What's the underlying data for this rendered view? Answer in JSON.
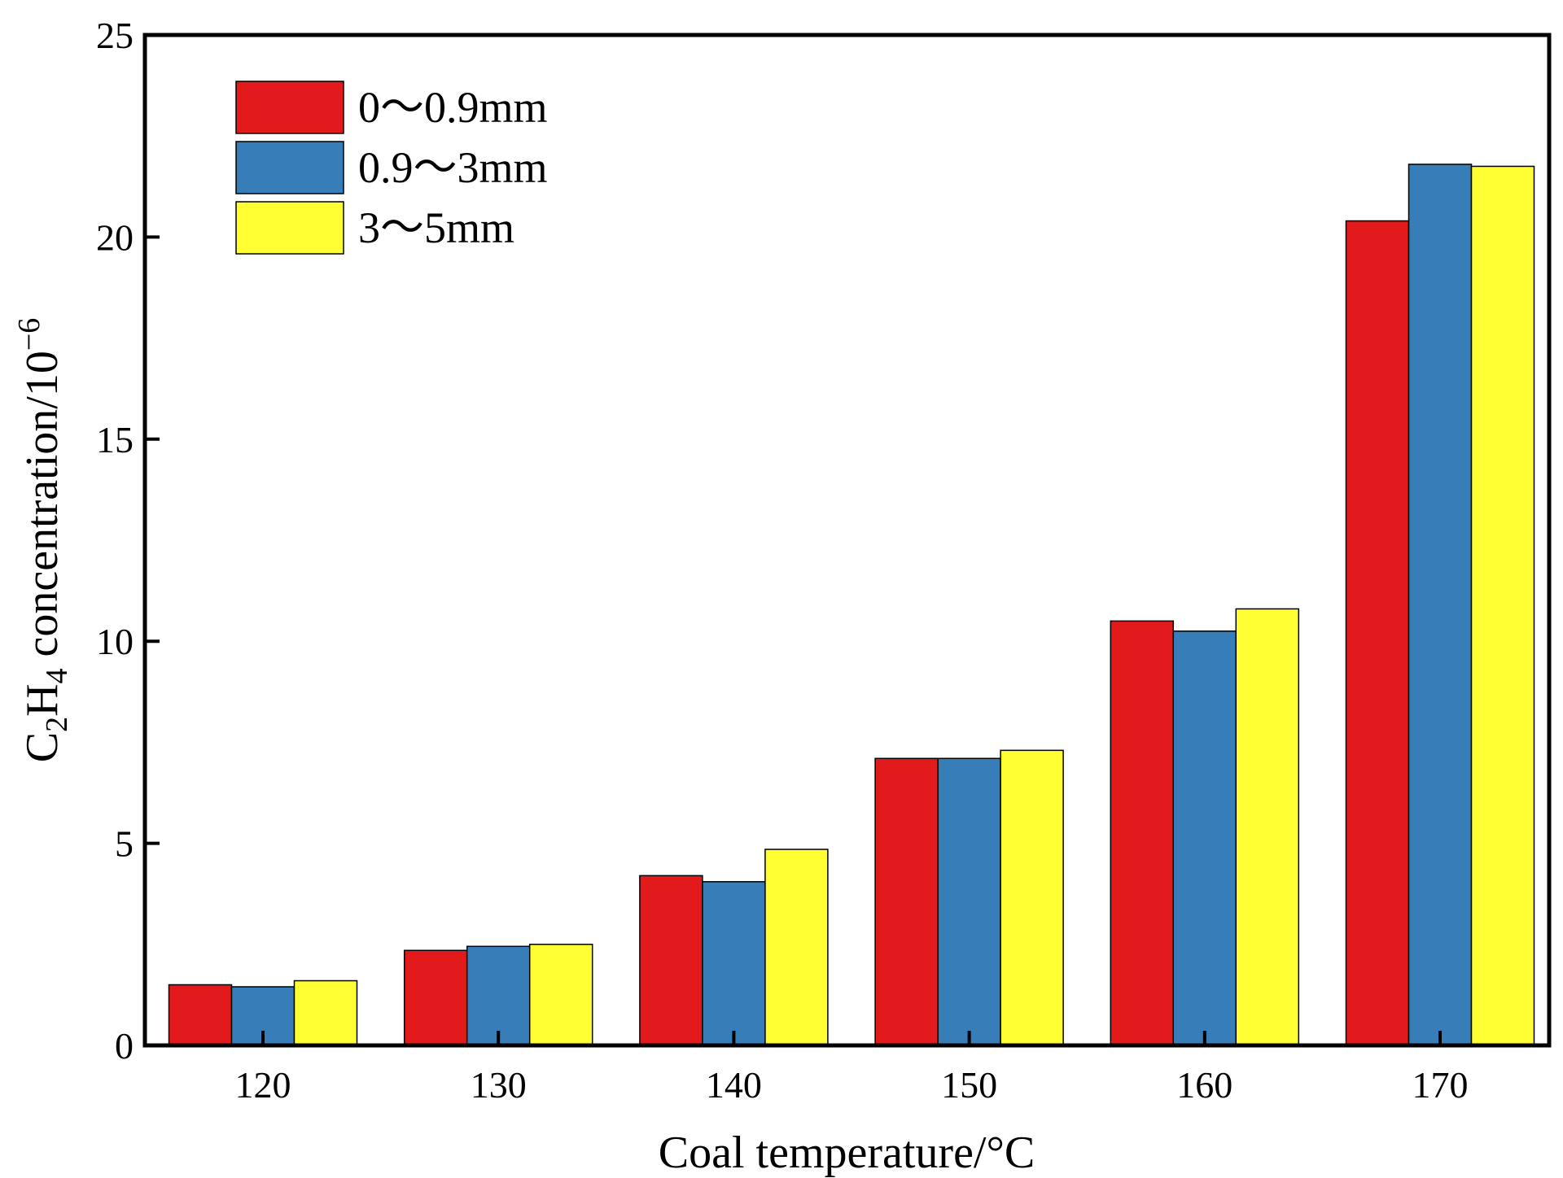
{
  "chart_data": {
    "type": "bar",
    "title": "",
    "xlabel": "Coal temperature/°C",
    "ylabel": {
      "base": "C",
      "sub1": "2",
      "mid": "H",
      "sub2": "4",
      "rest": " concentration/10",
      "sup": "−6"
    },
    "categories": [
      "120",
      "130",
      "140",
      "150",
      "160",
      "170"
    ],
    "series": [
      {
        "name": "0～0.9mm",
        "color": "#E31A1C",
        "values": [
          1.5,
          2.35,
          4.2,
          7.1,
          10.5,
          20.4
        ]
      },
      {
        "name": "0.9～3mm",
        "color": "#377EB8",
        "values": [
          1.45,
          2.45,
          4.05,
          7.1,
          10.25,
          21.8
        ]
      },
      {
        "name": "3～5mm",
        "color": "#FFFF33",
        "values": [
          1.6,
          2.5,
          4.85,
          7.3,
          10.8,
          21.75
        ]
      }
    ],
    "yticks": [
      "0",
      "5",
      "10",
      "15",
      "20",
      "25"
    ],
    "ylim": [
      0,
      25
    ],
    "grid": false,
    "legend_position": "top-left"
  }
}
